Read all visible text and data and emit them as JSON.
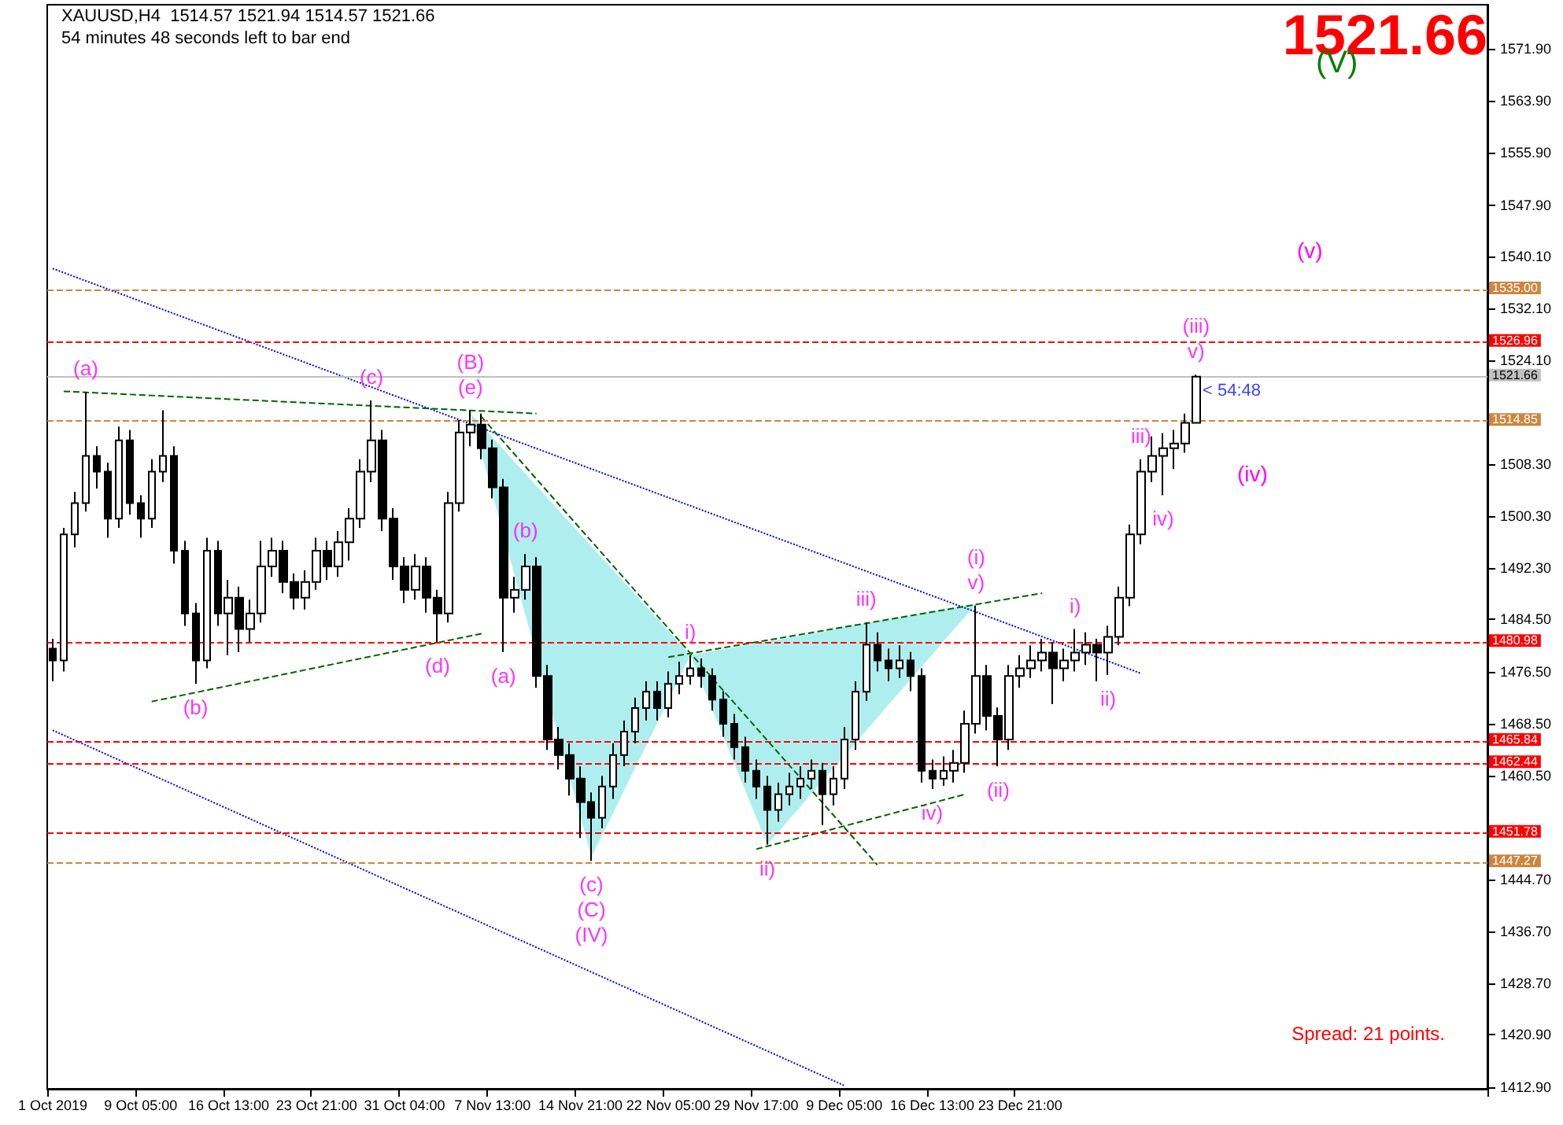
{
  "chart_data": {
    "type": "candlestick",
    "title": "XAUUSD,H4  1514.57 1521.94 1514.57 1521.66",
    "subtitle": "54 minutes 48 seconds left to bar end",
    "color": "#000000",
    "categories": [
      "1 Oct 2019",
      null,
      null,
      null,
      null,
      null,
      null,
      null,
      "9 Oct 05:00",
      null,
      null,
      null,
      null,
      null,
      null,
      null,
      "16 Oct 13:00",
      null,
      null,
      null,
      null,
      null,
      null,
      null,
      "23 Oct 21:00",
      null,
      null,
      null,
      null,
      null,
      null,
      null,
      "31 Oct 04:00",
      null,
      null,
      null,
      null,
      null,
      null,
      null,
      "7 Nov 13:00",
      null,
      null,
      null,
      null,
      null,
      null,
      null,
      "14 Nov 21:00",
      null,
      null,
      null,
      null,
      null,
      null,
      null,
      "22 Nov 05:00",
      null,
      null,
      null,
      null,
      null,
      null,
      null,
      "29 Nov 17:00",
      null,
      null,
      null,
      null,
      null,
      null,
      null,
      "9 Dec 05:00",
      null,
      null,
      null,
      null,
      null,
      null,
      null,
      "16 Dec 13:00",
      null,
      null,
      null,
      null,
      null,
      null,
      null,
      "23 Dec 21:00",
      null,
      null,
      null,
      null,
      null,
      null,
      null,
      null,
      null,
      null,
      null,
      null,
      null,
      null,
      null,
      null,
      null,
      null,
      null,
      null,
      null,
      null,
      null,
      null,
      null,
      null,
      null,
      null,
      null,
      null,
      null,
      null,
      null,
      null,
      null,
      null,
      null,
      null,
      null,
      null,
      null,
      null
    ],
    "ohlc": [
      [
        1480.0,
        1481.5,
        1475.0,
        1478.2
      ],
      [
        1478.2,
        1498.5,
        1476.5,
        1497.5
      ],
      [
        1497.5,
        1504.0,
        1495.5,
        1502.3
      ],
      [
        1502.3,
        1519.3,
        1501.0,
        1509.5
      ],
      [
        1509.5,
        1511.0,
        1504.5,
        1507.1
      ],
      [
        1507.1,
        1508.5,
        1497.0,
        1499.9
      ],
      [
        1499.9,
        1514.0,
        1498.5,
        1511.9
      ],
      [
        1511.9,
        1513.5,
        1500.5,
        1502.3
      ],
      [
        1502.3,
        1503.5,
        1497.0,
        1499.9
      ],
      [
        1499.9,
        1509.0,
        1498.5,
        1507.1
      ],
      [
        1507.1,
        1516.5,
        1505.5,
        1509.5
      ],
      [
        1509.5,
        1511.0,
        1493.0,
        1495.0
      ],
      [
        1495.0,
        1496.5,
        1483.5,
        1485.4
      ],
      [
        1485.4,
        1487.0,
        1474.6,
        1478.2
      ],
      [
        1478.2,
        1497.0,
        1477.0,
        1495.0
      ],
      [
        1495.0,
        1496.5,
        1483.5,
        1485.4
      ],
      [
        1485.4,
        1490.5,
        1479.0,
        1487.8
      ],
      [
        1487.8,
        1489.5,
        1479.5,
        1483.0
      ],
      [
        1483.0,
        1487.5,
        1481.0,
        1485.4
      ],
      [
        1485.4,
        1496.5,
        1484.0,
        1492.6
      ],
      [
        1492.6,
        1497.0,
        1491.0,
        1495.0
      ],
      [
        1495.0,
        1496.5,
        1488.5,
        1490.2
      ],
      [
        1490.2,
        1491.5,
        1486.0,
        1487.8
      ],
      [
        1487.8,
        1492.0,
        1486.0,
        1490.2
      ],
      [
        1490.2,
        1497.0,
        1489.0,
        1495.0
      ],
      [
        1495.0,
        1496.5,
        1490.5,
        1492.6
      ],
      [
        1492.6,
        1498.0,
        1491.0,
        1496.3
      ],
      [
        1496.3,
        1501.5,
        1493.5,
        1499.9
      ],
      [
        1499.9,
        1509.0,
        1498.5,
        1507.1
      ],
      [
        1507.1,
        1518.0,
        1505.5,
        1511.9
      ],
      [
        1511.9,
        1513.5,
        1498.0,
        1499.9
      ],
      [
        1499.9,
        1501.5,
        1490.5,
        1492.6
      ],
      [
        1492.6,
        1494.0,
        1487.0,
        1489.0
      ],
      [
        1489.0,
        1494.5,
        1487.5,
        1492.6
      ],
      [
        1492.6,
        1494.0,
        1485.5,
        1487.8
      ],
      [
        1487.8,
        1489.0,
        1481.0,
        1485.4
      ],
      [
        1485.4,
        1504.0,
        1484.0,
        1502.3
      ],
      [
        1502.3,
        1515.0,
        1501.0,
        1513.1
      ],
      [
        1513.1,
        1516.5,
        1511.0,
        1514.3
      ],
      [
        1514.3,
        1516.0,
        1509.0,
        1510.7
      ],
      [
        1510.7,
        1512.0,
        1503.0,
        1504.7
      ],
      [
        1504.7,
        1506.0,
        1479.5,
        1487.8
      ],
      [
        1487.8,
        1491.0,
        1485.5,
        1489.0
      ],
      [
        1489.0,
        1494.5,
        1487.5,
        1492.6
      ],
      [
        1492.6,
        1494.0,
        1474.0,
        1475.8
      ],
      [
        1475.8,
        1477.5,
        1464.5,
        1466.1
      ],
      [
        1466.1,
        1468.0,
        1461.5,
        1463.7
      ],
      [
        1463.7,
        1465.5,
        1457.5,
        1460.1
      ],
      [
        1460.1,
        1462.0,
        1451.0,
        1456.5
      ],
      [
        1456.5,
        1458.0,
        1447.5,
        1454.1
      ],
      [
        1454.1,
        1460.5,
        1452.5,
        1458.9
      ],
      [
        1458.9,
        1465.5,
        1457.0,
        1463.7
      ],
      [
        1463.7,
        1469.0,
        1462.0,
        1467.3
      ],
      [
        1467.3,
        1472.5,
        1465.5,
        1470.9
      ],
      [
        1470.9,
        1475.0,
        1469.0,
        1473.4
      ],
      [
        1473.4,
        1475.0,
        1469.0,
        1470.9
      ],
      [
        1470.9,
        1476.5,
        1469.5,
        1474.6
      ],
      [
        1474.6,
        1478.0,
        1473.0,
        1475.8
      ],
      [
        1475.8,
        1479.0,
        1474.5,
        1477.0
      ],
      [
        1477.0,
        1478.5,
        1474.0,
        1475.8
      ],
      [
        1475.8,
        1477.0,
        1470.5,
        1472.2
      ],
      [
        1472.2,
        1473.5,
        1466.5,
        1468.5
      ],
      [
        1468.5,
        1470.0,
        1463.0,
        1464.9
      ],
      [
        1464.9,
        1466.5,
        1459.5,
        1461.3
      ],
      [
        1461.3,
        1463.0,
        1457.0,
        1458.9
      ],
      [
        1458.9,
        1460.5,
        1450.0,
        1455.3
      ],
      [
        1455.3,
        1459.5,
        1453.5,
        1457.7
      ],
      [
        1457.7,
        1461.0,
        1456.0,
        1458.9
      ],
      [
        1458.9,
        1462.0,
        1457.0,
        1460.1
      ],
      [
        1460.1,
        1463.0,
        1458.5,
        1461.3
      ],
      [
        1461.3,
        1462.5,
        1453.0,
        1457.7
      ],
      [
        1457.7,
        1462.0,
        1456.0,
        1460.1
      ],
      [
        1460.1,
        1468.0,
        1458.5,
        1466.1
      ],
      [
        1466.1,
        1475.0,
        1464.5,
        1473.4
      ],
      [
        1473.4,
        1484.0,
        1472.0,
        1480.6
      ],
      [
        1480.6,
        1482.5,
        1476.5,
        1478.2
      ],
      [
        1478.2,
        1480.0,
        1475.0,
        1477.0
      ],
      [
        1477.0,
        1480.5,
        1475.5,
        1478.2
      ],
      [
        1478.2,
        1479.5,
        1473.5,
        1475.8
      ],
      [
        1475.8,
        1477.0,
        1459.5,
        1461.3
      ],
      [
        1461.3,
        1463.0,
        1458.5,
        1460.1
      ],
      [
        1460.1,
        1463.5,
        1459.0,
        1461.3
      ],
      [
        1461.3,
        1464.5,
        1459.5,
        1462.5
      ],
      [
        1462.5,
        1470.5,
        1461.0,
        1468.5
      ],
      [
        1468.5,
        1486.6,
        1467.0,
        1475.8
      ],
      [
        1475.8,
        1477.5,
        1467.5,
        1469.7
      ],
      [
        1469.7,
        1471.0,
        1462.0,
        1466.1
      ],
      [
        1466.1,
        1477.5,
        1464.5,
        1475.8
      ],
      [
        1475.8,
        1479.0,
        1474.0,
        1477.0
      ],
      [
        1477.0,
        1480.5,
        1475.5,
        1478.2
      ],
      [
        1478.2,
        1481.5,
        1476.5,
        1479.4
      ],
      [
        1479.4,
        1481.0,
        1471.5,
        1477.0
      ],
      [
        1477.0,
        1480.0,
        1475.0,
        1478.2
      ],
      [
        1478.2,
        1483.0,
        1476.5,
        1479.4
      ],
      [
        1479.4,
        1482.5,
        1477.5,
        1480.6
      ],
      [
        1480.6,
        1481.5,
        1475.0,
        1479.4
      ],
      [
        1479.4,
        1483.5,
        1476.0,
        1481.8
      ],
      [
        1481.8,
        1489.5,
        1480.5,
        1487.8
      ],
      [
        1487.8,
        1499.0,
        1486.5,
        1497.5
      ],
      [
        1497.5,
        1509.0,
        1496.0,
        1507.1
      ],
      [
        1507.1,
        1512.5,
        1505.5,
        1509.5
      ],
      [
        1509.5,
        1513.0,
        1503.5,
        1510.7
      ],
      [
        1510.7,
        1513.5,
        1507.5,
        1511.4
      ],
      [
        1511.4,
        1516.0,
        1510.0,
        1514.57
      ],
      [
        1514.57,
        1521.94,
        1514.57,
        1521.66
      ],
      null,
      null,
      null,
      null,
      null,
      null,
      null,
      null,
      null,
      null,
      null,
      null,
      null,
      null,
      null,
      null,
      null,
      null,
      null,
      null,
      null,
      null,
      null,
      null,
      null,
      null
    ],
    "value_labels": [
      null,
      null,
      null,
      "(a)",
      null,
      null,
      null,
      null,
      null,
      null,
      null,
      null,
      null,
      "(b)",
      null,
      null,
      null,
      null,
      null,
      null,
      null,
      null,
      null,
      null,
      null,
      null,
      null,
      null,
      null,
      "(c)",
      null,
      null,
      null,
      null,
      null,
      "(d)",
      null,
      null,
      "(B)\n(e)",
      null,
      null,
      "(a)",
      null,
      "(b)",
      null,
      null,
      null,
      null,
      null,
      "(c)\n(C)\n(IV)",
      null,
      null,
      null,
      null,
      null,
      null,
      null,
      null,
      "i)",
      null,
      null,
      null,
      null,
      null,
      null,
      "ii)",
      null,
      null,
      null,
      null,
      null,
      null,
      null,
      null,
      "iii)",
      null,
      null,
      null,
      null,
      null,
      "iv)",
      null,
      null,
      null,
      "(i)\nv)",
      null,
      "(ii)",
      null,
      null,
      null,
      null,
      null,
      null,
      "i)",
      null,
      null,
      "ii)",
      null,
      null,
      "iii)",
      null,
      "iv)",
      null,
      null,
      "(iii)\nv)",
      null,
      null,
      null,
      null,
      null,
      null,
      null,
      null,
      null,
      null,
      null,
      null,
      null,
      null,
      null,
      null,
      null,
      null,
      null,
      null,
      null,
      null,
      null,
      null,
      null,
      null
    ],
    "series": [
      {
        "type": "line",
        "color": "#0000ff",
        "line_style": "dotted",
        "values": [
          1538.2,
          null,
          null,
          null,
          null,
          null,
          null,
          null,
          null,
          null,
          null,
          null,
          null,
          null,
          null,
          null,
          null,
          null,
          null,
          null,
          null,
          null,
          null,
          null,
          null,
          null,
          null,
          null,
          null,
          null,
          null,
          null,
          null,
          null,
          null,
          null,
          null,
          null,
          null,
          null,
          null,
          null,
          null,
          null,
          null,
          null,
          null,
          null,
          null,
          null,
          null,
          null,
          null,
          null,
          null,
          null,
          null,
          null,
          null,
          null,
          null,
          null,
          null,
          null,
          null,
          null,
          null,
          null,
          null,
          null,
          null,
          null,
          null,
          null,
          null,
          null,
          null,
          null,
          null,
          null,
          null,
          null,
          null,
          null,
          null,
          null,
          null,
          null,
          null,
          null,
          null,
          null,
          null,
          null,
          null,
          null,
          null,
          null,
          null,
          1476.2,
          null,
          null,
          null,
          null,
          null,
          null,
          null,
          null,
          null,
          null,
          null,
          null,
          null,
          null,
          null,
          null,
          null,
          null,
          null,
          null,
          null,
          null,
          null,
          null,
          null,
          null,
          null,
          null,
          null,
          null,
          null
        ]
      },
      {
        "type": "line",
        "color": "#0000ff",
        "line_style": "dotted",
        "values": [
          1467.5,
          null,
          null,
          null,
          null,
          null,
          null,
          null,
          null,
          null,
          null,
          null,
          null,
          null,
          null,
          null,
          null,
          null,
          null,
          null,
          null,
          null,
          null,
          null,
          null,
          null,
          null,
          null,
          null,
          null,
          null,
          null,
          null,
          null,
          null,
          null,
          null,
          null,
          null,
          null,
          null,
          null,
          null,
          null,
          null,
          null,
          null,
          null,
          null,
          null,
          null,
          null,
          null,
          null,
          null,
          null,
          null,
          null,
          null,
          null,
          null,
          null,
          null,
          null,
          null,
          null,
          null,
          null,
          null,
          null,
          null,
          null,
          1413.1,
          null,
          null,
          null,
          null,
          null,
          null,
          null,
          null,
          null,
          null,
          null,
          null,
          null,
          null,
          null,
          null,
          null,
          null,
          null,
          null,
          null,
          null,
          null,
          null,
          null,
          null,
          null,
          null,
          null,
          null,
          null,
          null,
          null,
          null,
          null,
          null,
          null,
          null,
          null,
          null,
          null,
          null,
          null,
          null,
          null,
          null,
          null,
          null,
          null,
          null,
          null,
          null,
          null,
          null,
          null,
          null,
          null,
          null
        ]
      },
      {
        "type": "line",
        "color": "#006400",
        "line_style": "dashed",
        "values": [
          null,
          1519.4,
          null,
          null,
          null,
          null,
          null,
          null,
          null,
          null,
          null,
          null,
          null,
          null,
          null,
          null,
          null,
          null,
          null,
          null,
          null,
          null,
          null,
          null,
          null,
          null,
          null,
          null,
          null,
          null,
          null,
          null,
          null,
          null,
          null,
          null,
          null,
          null,
          null,
          null,
          null,
          null,
          null,
          null,
          1516.0,
          null,
          null,
          null,
          null,
          null,
          null,
          null,
          null,
          null,
          null,
          null,
          null,
          null,
          null,
          null,
          null,
          null,
          null,
          null,
          null,
          null,
          null,
          null,
          null,
          null,
          null,
          null,
          null,
          null,
          null,
          null,
          null,
          null,
          null,
          null,
          null,
          null,
          null,
          null,
          null,
          null,
          null,
          null,
          null,
          null,
          null,
          null,
          null,
          null,
          null,
          null,
          null,
          null,
          null,
          null,
          null,
          null,
          null,
          null,
          null,
          null,
          null,
          null,
          null,
          null,
          null,
          null,
          null,
          null,
          null,
          null,
          null,
          null,
          null,
          null,
          null,
          null,
          null,
          null,
          null,
          null,
          null,
          null,
          null,
          null,
          null
        ]
      },
      {
        "type": "line",
        "color": "#006400",
        "line_style": "dashed",
        "values": [
          null,
          null,
          null,
          null,
          null,
          null,
          null,
          null,
          null,
          1471.9,
          null,
          null,
          null,
          null,
          null,
          null,
          null,
          null,
          null,
          null,
          null,
          null,
          null,
          null,
          null,
          null,
          null,
          null,
          null,
          null,
          null,
          null,
          null,
          null,
          null,
          null,
          null,
          null,
          null,
          1482.3,
          null,
          null,
          null,
          null,
          null,
          null,
          null,
          null,
          null,
          null,
          null,
          null,
          null,
          null,
          null,
          null,
          null,
          null,
          null,
          null,
          null,
          null,
          null,
          null,
          null,
          null,
          null,
          null,
          null,
          null,
          null,
          null,
          null,
          null,
          null,
          null,
          null,
          null,
          null,
          null,
          null,
          null,
          null,
          null,
          null,
          null,
          null,
          null,
          null,
          null,
          null,
          null,
          null,
          null,
          null,
          null,
          null,
          null,
          null,
          null,
          null,
          null,
          null,
          null,
          null,
          null,
          null,
          null,
          null,
          null,
          null,
          null,
          null,
          null,
          null,
          null,
          null,
          null,
          null,
          null,
          null,
          null,
          null,
          null,
          null,
          null,
          null,
          null,
          null,
          null,
          null
        ]
      },
      {
        "type": "line",
        "color": "#006400",
        "line_style": "dashed",
        "values": [
          null,
          null,
          null,
          null,
          null,
          null,
          null,
          null,
          null,
          null,
          null,
          null,
          null,
          null,
          null,
          null,
          null,
          null,
          null,
          null,
          null,
          null,
          null,
          null,
          null,
          null,
          null,
          null,
          null,
          null,
          null,
          null,
          null,
          null,
          null,
          null,
          null,
          null,
          null,
          1515.5,
          null,
          null,
          null,
          null,
          null,
          null,
          null,
          null,
          null,
          null,
          null,
          null,
          null,
          null,
          null,
          null,
          null,
          null,
          null,
          null,
          null,
          null,
          null,
          null,
          null,
          null,
          null,
          null,
          null,
          null,
          null,
          null,
          null,
          null,
          null,
          1446.9,
          null,
          null,
          null,
          null,
          null,
          null,
          null,
          null,
          null,
          null,
          null,
          null,
          null,
          null,
          null,
          null,
          null,
          null,
          null,
          null,
          null,
          null,
          null,
          null,
          null,
          null,
          null,
          null,
          null,
          null,
          null,
          null,
          null,
          null,
          null,
          null,
          null,
          null,
          null,
          null,
          null,
          null,
          null,
          null,
          null,
          null,
          null,
          null,
          null,
          null,
          null,
          null,
          null,
          null,
          null
        ],
        "upper": [
          null,
          null,
          null,
          null,
          null,
          null,
          null,
          null,
          null,
          null,
          null,
          null,
          null,
          null,
          null,
          null,
          null,
          null,
          null,
          null,
          null,
          null,
          null,
          null,
          null,
          null,
          null,
          null,
          null,
          null,
          null,
          null,
          null,
          null,
          null,
          null,
          null,
          null,
          1516.0,
          1514.2,
          1512.3,
          1510.5,
          1508.6,
          1506.8,
          1504.9,
          1503.1,
          1501.2,
          1499.4,
          1497.5,
          1495.7,
          1493.8,
          1492.0,
          1490.1,
          1488.3,
          1486.4,
          1484.6,
          1482.7,
          1480.9,
          1479.0,
          null,
          null,
          null,
          null,
          null,
          null,
          null,
          null,
          null,
          null,
          null,
          null,
          null,
          null,
          null,
          null,
          null,
          null,
          null,
          null,
          null,
          null,
          null,
          null,
          null,
          null,
          null,
          null,
          null,
          null,
          null,
          null,
          null,
          null,
          null,
          null,
          null,
          null,
          null,
          null,
          null,
          null,
          null,
          null,
          null,
          null,
          null,
          null,
          null,
          null,
          null,
          null,
          null,
          null,
          null,
          null,
          null,
          null,
          null,
          null,
          null,
          null,
          null,
          null,
          null,
          null,
          null,
          null,
          null,
          null,
          null,
          null
        ],
        "lower": [
          null,
          null,
          null,
          null,
          null,
          null,
          null,
          null,
          null,
          null,
          null,
          null,
          null,
          null,
          null,
          null,
          null,
          null,
          null,
          null,
          null,
          null,
          null,
          null,
          null,
          null,
          null,
          null,
          null,
          null,
          null,
          null,
          null,
          null,
          null,
          null,
          null,
          null,
          1516.0,
          1509.8,
          1503.7,
          1497.5,
          1491.3,
          1485.1,
          1479.0,
          1472.8,
          1466.6,
          1460.4,
          1454.3,
          1448.1,
          1451.5,
          1454.9,
          1458.4,
          1461.8,
          1465.2,
          1468.7,
          1472.1,
          1475.6,
          1479.0,
          null,
          null,
          null,
          null,
          null,
          null,
          null,
          null,
          null,
          null,
          null,
          null,
          null,
          null,
          null,
          null,
          null,
          null,
          null,
          null,
          null,
          null,
          null,
          null,
          null,
          null,
          null,
          null,
          null,
          null,
          null,
          null,
          null,
          null,
          null,
          null,
          null,
          null,
          null,
          null,
          null,
          null,
          null,
          null,
          null,
          null,
          null,
          null,
          null,
          null,
          null,
          null,
          null,
          null,
          null,
          null,
          null,
          null,
          null,
          null,
          null,
          null,
          null,
          null,
          null,
          null,
          null,
          null,
          null,
          null,
          null,
          null
        ]
      },
      {
        "type": "line",
        "color": "#006400",
        "line_style": "dashed",
        "values": [
          null,
          null,
          null,
          null,
          null,
          null,
          null,
          null,
          null,
          null,
          null,
          null,
          null,
          null,
          null,
          null,
          null,
          null,
          null,
          null,
          null,
          null,
          null,
          null,
          null,
          null,
          null,
          null,
          null,
          null,
          null,
          null,
          null,
          null,
          null,
          null,
          null,
          null,
          null,
          null,
          null,
          null,
          null,
          null,
          null,
          null,
          null,
          null,
          null,
          null,
          null,
          null,
          null,
          null,
          null,
          null,
          1478.7,
          null,
          null,
          null,
          null,
          null,
          null,
          null,
          null,
          null,
          null,
          null,
          null,
          null,
          null,
          null,
          null,
          null,
          null,
          null,
          null,
          null,
          null,
          null,
          null,
          null,
          null,
          null,
          null,
          null,
          null,
          null,
          null,
          null,
          1488.5,
          null,
          null,
          null,
          null,
          null,
          null,
          null,
          null,
          null,
          null,
          null,
          null,
          null,
          null,
          null,
          null,
          null,
          null,
          null,
          null,
          null,
          null,
          null,
          null,
          null,
          null,
          null,
          null,
          null,
          null,
          null,
          null,
          null,
          null,
          null,
          null,
          null,
          null,
          null,
          null
        ],
        "upper": [
          null,
          null,
          null,
          null,
          null,
          null,
          null,
          null,
          null,
          null,
          null,
          null,
          null,
          null,
          null,
          null,
          null,
          null,
          null,
          null,
          null,
          null,
          null,
          null,
          null,
          null,
          null,
          null,
          null,
          null,
          null,
          null,
          null,
          null,
          null,
          null,
          null,
          null,
          null,
          null,
          null,
          null,
          null,
          null,
          null,
          null,
          null,
          null,
          null,
          null,
          null,
          null,
          null,
          null,
          null,
          null,
          null,
          null,
          1479.0,
          1479.3,
          1479.6,
          1479.9,
          1480.2,
          1480.5,
          1480.8,
          1481.1,
          1481.4,
          1481.7,
          1482.0,
          1482.3,
          1482.6,
          1482.9,
          1483.3,
          1483.6,
          1483.9,
          1484.2,
          1484.5,
          1484.8,
          1485.1,
          1485.4,
          1485.7,
          1486.0,
          1486.3,
          1486.6,
          1486.9,
          null,
          null,
          null,
          null,
          null,
          null,
          null,
          null,
          null,
          null,
          null,
          null,
          null,
          null,
          null,
          null,
          null,
          null,
          null,
          null,
          null,
          null,
          null,
          null,
          null,
          null,
          null,
          null,
          null,
          null,
          null,
          null,
          null,
          null,
          null,
          null,
          null,
          null,
          null,
          null,
          null,
          null,
          null,
          null,
          null,
          null
        ],
        "lower": [
          null,
          null,
          null,
          null,
          null,
          null,
          null,
          null,
          null,
          null,
          null,
          null,
          null,
          null,
          null,
          null,
          null,
          null,
          null,
          null,
          null,
          null,
          null,
          null,
          null,
          null,
          null,
          null,
          null,
          null,
          null,
          null,
          null,
          null,
          null,
          null,
          null,
          null,
          null,
          null,
          null,
          null,
          null,
          null,
          null,
          null,
          null,
          null,
          null,
          null,
          null,
          null,
          null,
          null,
          null,
          null,
          null,
          null,
          1479.0,
          1474.9,
          1470.7,
          1466.6,
          1462.4,
          1458.3,
          1454.1,
          1450.0,
          1451.9,
          1453.9,
          1455.8,
          1457.8,
          1459.7,
          1461.7,
          1463.6,
          1465.5,
          1467.5,
          1469.4,
          1471.4,
          1473.3,
          1475.2,
          1477.2,
          1479.1,
          1481.1,
          1483.0,
          1484.9,
          1486.9,
          null,
          null,
          null,
          null,
          null,
          null,
          null,
          null,
          null,
          null,
          null,
          null,
          null,
          null,
          null,
          null,
          null,
          null,
          null,
          null,
          null,
          null,
          null,
          null,
          null,
          null,
          null,
          null,
          null,
          null,
          null,
          null,
          null,
          null,
          null,
          null,
          null,
          null,
          null,
          null,
          null,
          null,
          null,
          null,
          null,
          null
        ]
      },
      {
        "type": "line",
        "color": "#006400",
        "line_style": "dashed",
        "values": [
          null,
          null,
          null,
          null,
          null,
          null,
          null,
          null,
          null,
          null,
          null,
          null,
          null,
          null,
          null,
          null,
          null,
          null,
          null,
          null,
          null,
          null,
          null,
          null,
          null,
          null,
          null,
          null,
          null,
          null,
          null,
          null,
          null,
          null,
          null,
          null,
          null,
          null,
          null,
          null,
          null,
          null,
          null,
          null,
          null,
          null,
          null,
          null,
          null,
          null,
          null,
          null,
          null,
          null,
          null,
          null,
          null,
          null,
          null,
          null,
          null,
          null,
          null,
          null,
          1449.3,
          null,
          null,
          null,
          null,
          null,
          null,
          null,
          null,
          null,
          null,
          null,
          null,
          null,
          null,
          null,
          null,
          null,
          null,
          1457.7,
          null,
          null,
          null,
          null,
          null,
          null,
          null,
          null,
          null,
          null,
          null,
          null,
          null,
          null,
          null,
          null,
          null,
          null,
          null,
          null,
          null,
          null,
          null,
          null,
          null,
          null,
          null,
          null,
          null,
          null,
          null,
          null,
          null,
          null,
          null,
          null,
          null,
          null,
          null,
          null,
          null,
          null,
          null,
          null,
          null,
          null,
          null
        ]
      }
    ],
    "ref_lines": [
      {
        "axis": "y",
        "value": 1535.0,
        "label": "1535.00",
        "color": "#cd853f",
        "line_style": "dashed"
      },
      {
        "axis": "y",
        "value": 1526.96,
        "label": "1526.96",
        "color": "#ff0000",
        "line_style": "dashed"
      },
      {
        "axis": "y",
        "value": 1521.66,
        "label": "1521.66",
        "color": "#c0c0c0",
        "line_style": "solid"
      },
      {
        "axis": "y",
        "value": 1514.85,
        "label": "1514.85",
        "color": "#cd853f",
        "line_style": "dashed"
      },
      {
        "axis": "y",
        "value": 1480.98,
        "label": "1480.98",
        "color": "#ff0000",
        "line_style": "dashed"
      },
      {
        "axis": "y",
        "value": 1465.84,
        "label": "1465.84",
        "color": "#ff0000",
        "line_style": "dashed"
      },
      {
        "axis": "y",
        "value": 1462.44,
        "label": "1462.44",
        "color": "#ff0000",
        "line_style": "dashed"
      },
      {
        "axis": "y",
        "value": 1451.78,
        "label": "1451.78",
        "color": "#ff0000",
        "line_style": "dashed"
      },
      {
        "axis": "y",
        "value": 1447.27,
        "label": "1447.27",
        "color": "#cd853f",
        "line_style": "dashed"
      }
    ],
    "annotations": [
      "1521.66",
      "Spread: 21 points.",
      "(V)",
      "(v)",
      "(iv)",
      "< 54:48"
    ],
    "ylim": [
      1412.6,
      1578.6
    ],
    "yticks": [
      {
        "value": 1412.9,
        "label": "1412.90"
      },
      {
        "value": 1420.9,
        "label": "1420.90"
      },
      {
        "value": 1428.7,
        "label": "1428.70"
      },
      {
        "value": 1436.7,
        "label": "1436.70"
      },
      {
        "value": 1444.7,
        "label": "1444.70"
      },
      {
        "value": 1460.5,
        "label": "1460.50"
      },
      {
        "value": 1468.5,
        "label": "1468.50"
      },
      {
        "value": 1476.5,
        "label": "1476.50"
      },
      {
        "value": 1484.5,
        "label": "1484.50"
      },
      {
        "value": 1492.3,
        "label": "1492.30"
      },
      {
        "value": 1500.3,
        "label": "1500.30"
      },
      {
        "value": 1508.3,
        "label": "1508.30"
      },
      {
        "value": 1524.1,
        "label": "1524.10"
      },
      {
        "value": 1532.1,
        "label": "1532.10"
      },
      {
        "value": 1540.1,
        "label": "1540.10"
      },
      {
        "value": 1547.9,
        "label": "1547.90"
      },
      {
        "value": 1555.9,
        "label": "1555.90"
      },
      {
        "value": 1563.9,
        "label": "1563.90"
      },
      {
        "value": 1571.9,
        "label": "1571.90"
      }
    ]
  }
}
